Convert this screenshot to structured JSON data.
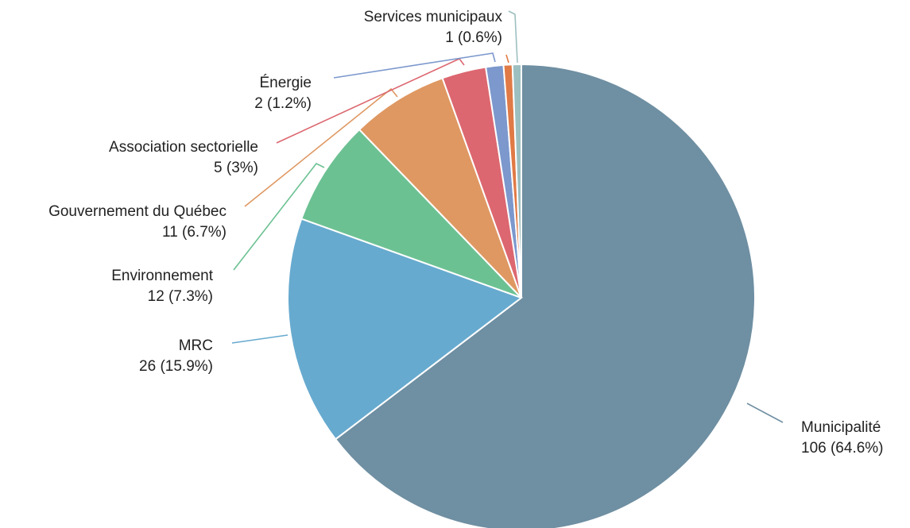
{
  "chart_data": {
    "type": "pie",
    "title": "",
    "legend": "none",
    "start_angle_deg": 0,
    "direction": "clockwise",
    "slices": [
      {
        "label": "Municipalité",
        "value": 106,
        "percent_text": "106 (64.6%)",
        "color": "#6f8fa2",
        "leader": "#6f8fa2"
      },
      {
        "label": "MRC",
        "value": 26,
        "percent_text": "26 (15.9%)",
        "color": "#67aacf",
        "leader": "#67aacf"
      },
      {
        "label": "Environnement",
        "value": 12,
        "percent_text": "12 (7.3%)",
        "color": "#6cc193",
        "leader": "#6cc193"
      },
      {
        "label": "Gouvernement du Québec",
        "value": 11,
        "percent_text": "11 (6.7%)",
        "color": "#df9862",
        "leader": "#df9862"
      },
      {
        "label": "Association sectorielle",
        "value": 5,
        "percent_text": "5 (3%)",
        "color": "#dc6770",
        "leader": "#dc6770"
      },
      {
        "label": "Énergie",
        "value": 2,
        "percent_text": "2 (1.2%)",
        "color": "#7c98cd",
        "leader": "#7c98cd"
      },
      {
        "label": "",
        "value": 1,
        "percent_text": "",
        "color": "#e07a46",
        "leader": "#e07a46"
      },
      {
        "label": "Services municipaux",
        "value": 1,
        "percent_text": "1 (0.6%)",
        "color": "#9dbfc0",
        "leader": "#9dbfc0"
      }
    ]
  }
}
